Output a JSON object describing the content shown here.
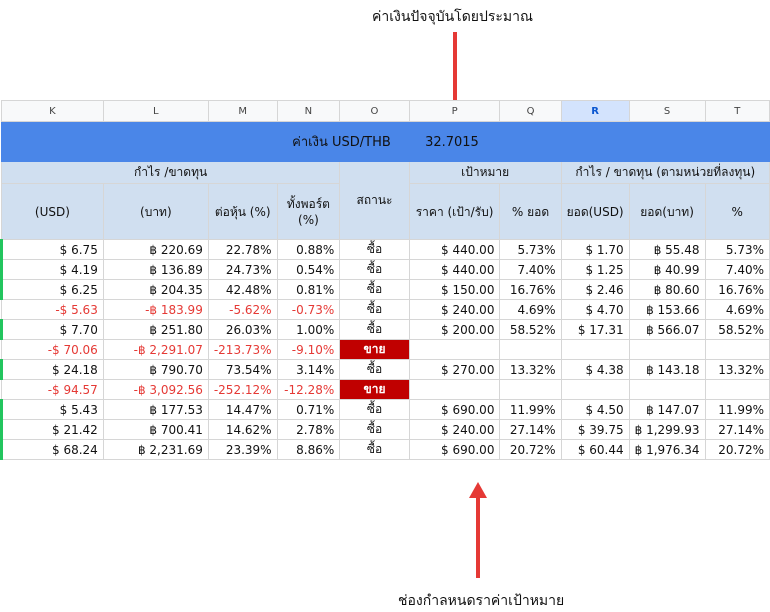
{
  "annotations": {
    "top": "ค่าเงินปัจจุบันโดยประมาณ",
    "bottom": "ช่องกำลหนดราค่าเป้าหมาย"
  },
  "colors": {
    "header_blue": "#4a86e8",
    "header_light": "#d0dff0",
    "negative": "#e53935",
    "sell_bg": "#c00000",
    "positive_marker": "#22c55e",
    "arrow": "#e53935"
  },
  "columns": [
    "K",
    "L",
    "M",
    "N",
    "O",
    "P",
    "Q",
    "R",
    "S",
    "T"
  ],
  "selected_column": "R",
  "banner": {
    "label": "ค่าเงิน USD/THB",
    "rate": "32.7015"
  },
  "groups": {
    "profit": "กำไร /ขาดทุน",
    "status": "สถานะ",
    "target": "เป้าหมาย",
    "profit_units": "กำไร / ขาดทุน (ตามหน่วยที่ลงทุน)"
  },
  "subheaders": [
    "(USD)",
    "(บาท)",
    "ต่อหุ้น (%)",
    "ทั้งพอร์ต (%)",
    "ราคา (เป้า/รับ)",
    "% ยอด",
    "ยอด(USD)",
    "ยอด(บาท)",
    "%"
  ],
  "rows": [
    {
      "k": "$ 6.75",
      "l": "฿ 220.69",
      "m": "22.78%",
      "n": "0.88%",
      "o": "ซื้อ",
      "p": "$ 440.00",
      "q": "5.73%",
      "r": "$ 1.70",
      "s": "฿ 55.48",
      "t": "5.73%",
      "neg": false,
      "sell": false,
      "mark": true
    },
    {
      "k": "$ 4.19",
      "l": "฿ 136.89",
      "m": "24.73%",
      "n": "0.54%",
      "o": "ซื้อ",
      "p": "$ 440.00",
      "q": "7.40%",
      "r": "$ 1.25",
      "s": "฿ 40.99",
      "t": "7.40%",
      "neg": false,
      "sell": false,
      "mark": true
    },
    {
      "k": "$ 6.25",
      "l": "฿ 204.35",
      "m": "42.48%",
      "n": "0.81%",
      "o": "ซื้อ",
      "p": "$ 150.00",
      "q": "16.76%",
      "r": "$ 2.46",
      "s": "฿ 80.60",
      "t": "16.76%",
      "neg": false,
      "sell": false,
      "mark": true
    },
    {
      "k": "-$ 5.63",
      "l": "-฿ 183.99",
      "m": "-5.62%",
      "n": "-0.73%",
      "o": "ซื้อ",
      "p": "$ 240.00",
      "q": "4.69%",
      "r": "$ 4.70",
      "s": "฿ 153.66",
      "t": "4.69%",
      "neg": true,
      "sell": false,
      "mark": false
    },
    {
      "k": "$ 7.70",
      "l": "฿ 251.80",
      "m": "26.03%",
      "n": "1.00%",
      "o": "ซื้อ",
      "p": "$ 200.00",
      "q": "58.52%",
      "r": "$ 17.31",
      "s": "฿ 566.07",
      "t": "58.52%",
      "neg": false,
      "sell": false,
      "mark": true
    },
    {
      "k": "-$ 70.06",
      "l": "-฿ 2,291.07",
      "m": "-213.73%",
      "n": "-9.10%",
      "o": "ขาย",
      "p": "",
      "q": "",
      "r": "",
      "s": "",
      "t": "",
      "neg": true,
      "sell": true,
      "mark": false
    },
    {
      "k": "$ 24.18",
      "l": "฿ 790.70",
      "m": "73.54%",
      "n": "3.14%",
      "o": "ซื้อ",
      "p": "$ 270.00",
      "q": "13.32%",
      "r": "$ 4.38",
      "s": "฿ 143.18",
      "t": "13.32%",
      "neg": false,
      "sell": false,
      "mark": true
    },
    {
      "k": "-$ 94.57",
      "l": "-฿ 3,092.56",
      "m": "-252.12%",
      "n": "-12.28%",
      "o": "ขาย",
      "p": "",
      "q": "",
      "r": "",
      "s": "",
      "t": "",
      "neg": true,
      "sell": true,
      "mark": false
    },
    {
      "k": "$ 5.43",
      "l": "฿ 177.53",
      "m": "14.47%",
      "n": "0.71%",
      "o": "ซื้อ",
      "p": "$ 690.00",
      "q": "11.99%",
      "r": "$ 4.50",
      "s": "฿ 147.07",
      "t": "11.99%",
      "neg": false,
      "sell": false,
      "mark": true
    },
    {
      "k": "$ 21.42",
      "l": "฿ 700.41",
      "m": "14.62%",
      "n": "2.78%",
      "o": "ซื้อ",
      "p": "$ 240.00",
      "q": "27.14%",
      "r": "$ 39.75",
      "s": "฿ 1,299.93",
      "t": "27.14%",
      "neg": false,
      "sell": false,
      "mark": true
    },
    {
      "k": "$ 68.24",
      "l": "฿ 2,231.69",
      "m": "23.39%",
      "n": "8.86%",
      "o": "ซื้อ",
      "p": "$ 690.00",
      "q": "20.72%",
      "r": "$ 60.44",
      "s": "฿ 1,976.34",
      "t": "20.72%",
      "neg": false,
      "sell": false,
      "mark": true
    }
  ]
}
